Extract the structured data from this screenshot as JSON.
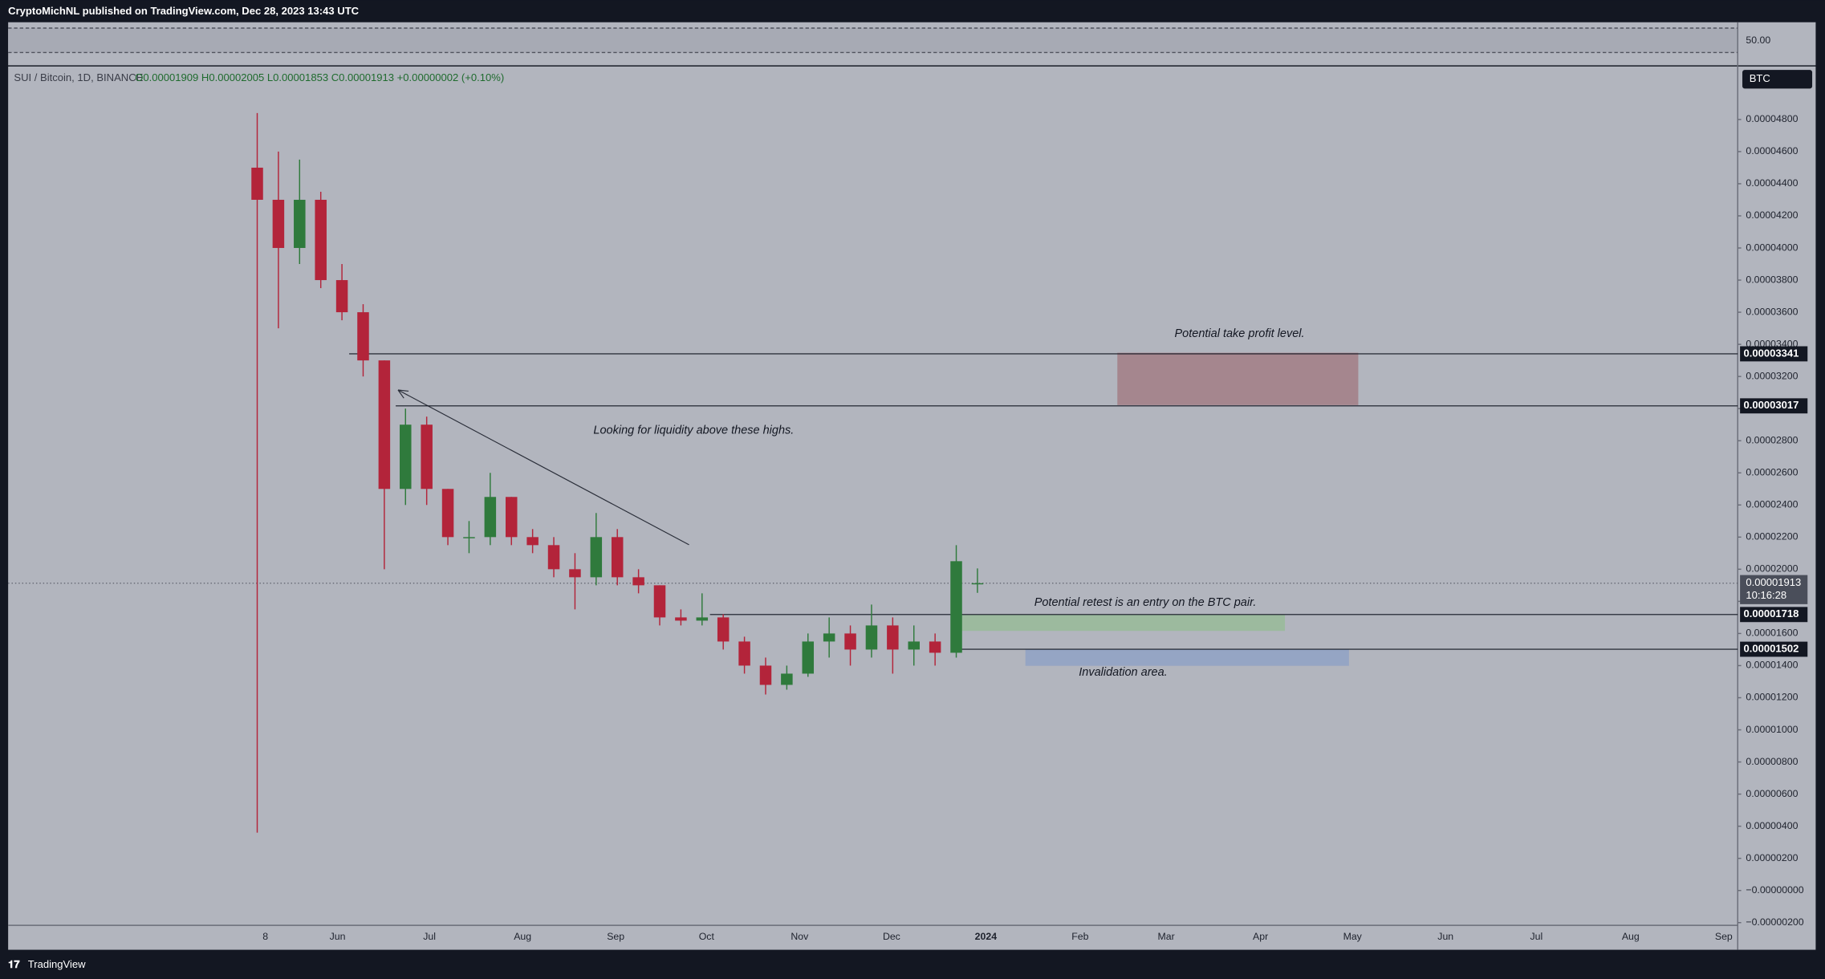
{
  "chart_data": {
    "type": "candlestick",
    "title": "CryptoMichNL published on TradingView.com, Dec 28, 2023 13:43 UTC",
    "subtitle": "SUI / Bitcoin, 1D, BINANCE",
    "ohlc_legend": "O0.00001909 H0.00002005 L0.00001853 C0.00001913 +0.00000002 (+0.10%)",
    "currency": "BTC",
    "rsi_label": "50.00",
    "footer": "TradingView",
    "categories": [
      null,
      null,
      null,
      null,
      null,
      null,
      null,
      null,
      null,
      null,
      null,
      null,
      null,
      null,
      null,
      null,
      null,
      null,
      null,
      null,
      null,
      null,
      null,
      null,
      null,
      null,
      null,
      null,
      null,
      null,
      null,
      null,
      null,
      null,
      null
    ],
    "open": [
      4.5e-05,
      4.3e-05,
      4e-05,
      4.3e-05,
      3.8e-05,
      3.6e-05,
      3.3e-05,
      2.5e-05,
      2.9e-05,
      2.5e-05,
      2.2e-05,
      2.2e-05,
      2.45e-05,
      2.2e-05,
      2.15e-05,
      2e-05,
      1.95e-05,
      2.2e-05,
      1.95e-05,
      1.9e-05,
      1.7e-05,
      1.68e-05,
      1.7e-05,
      1.55e-05,
      1.4e-05,
      1.28e-05,
      1.35e-05,
      1.55e-05,
      1.6e-05,
      1.5e-05,
      1.65e-05,
      1.5e-05,
      1.55e-05,
      1.48e-05,
      1.909e-05
    ],
    "high": [
      4.84e-05,
      4.6e-05,
      4.55e-05,
      4.35e-05,
      3.9e-05,
      3.65e-05,
      3.3e-05,
      3e-05,
      2.95e-05,
      2.5e-05,
      2.3e-05,
      2.6e-05,
      2.45e-05,
      2.25e-05,
      2.2e-05,
      2.1e-05,
      2.35e-05,
      2.25e-05,
      2e-05,
      1.9e-05,
      1.75e-05,
      1.85e-05,
      1.72e-05,
      1.58e-05,
      1.45e-05,
      1.4e-05,
      1.6e-05,
      1.7e-05,
      1.65e-05,
      1.78e-05,
      1.7e-05,
      1.65e-05,
      1.6e-05,
      2.15e-05,
      2.005e-05
    ],
    "low": [
      3.6e-06,
      3.5e-05,
      3.9e-05,
      3.75e-05,
      3.55e-05,
      3.2e-05,
      2e-05,
      2.4e-05,
      2.4e-05,
      2.15e-05,
      2.1e-05,
      2.15e-05,
      2.15e-05,
      2.1e-05,
      1.95e-05,
      1.75e-05,
      1.9e-05,
      1.9e-05,
      1.85e-05,
      1.65e-05,
      1.65e-05,
      1.65e-05,
      1.5e-05,
      1.35e-05,
      1.22e-05,
      1.25e-05,
      1.33e-05,
      1.45e-05,
      1.4e-05,
      1.45e-05,
      1.35e-05,
      1.4e-05,
      1.4e-05,
      1.45e-05,
      1.853e-05
    ],
    "close": [
      4.3e-05,
      4e-05,
      4.3e-05,
      3.8e-05,
      3.6e-05,
      3.3e-05,
      2.5e-05,
      2.9e-05,
      2.5e-05,
      2.2e-05,
      2.2e-05,
      2.45e-05,
      2.2e-05,
      2.15e-05,
      2e-05,
      1.95e-05,
      2.2e-05,
      1.95e-05,
      1.9e-05,
      1.7e-05,
      1.68e-05,
      1.7e-05,
      1.55e-05,
      1.4e-05,
      1.28e-05,
      1.35e-05,
      1.55e-05,
      1.6e-05,
      1.5e-05,
      1.65e-05,
      1.5e-05,
      1.55e-05,
      1.48e-05,
      2.05e-05,
      1.913e-05
    ],
    "up_color": "#2f7a3c",
    "down_color": "#b3243a",
    "ylim": [
      -2.17e-06,
      5.13e-05
    ],
    "yticks": [
      {
        "value": 4.8e-05,
        "label": "0.00004800"
      },
      {
        "value": 4.6e-05,
        "label": "0.00004600"
      },
      {
        "value": 4.4e-05,
        "label": "0.00004400"
      },
      {
        "value": 4.2e-05,
        "label": "0.00004200"
      },
      {
        "value": 4e-05,
        "label": "0.00004000"
      },
      {
        "value": 3.8e-05,
        "label": "0.00003800"
      },
      {
        "value": 3.6e-05,
        "label": "0.00003600"
      },
      {
        "value": 3.4e-05,
        "label": "0.00003400"
      },
      {
        "value": 3.2e-05,
        "label": "0.00003200"
      },
      {
        "value": 3e-05,
        "label": "0.00003000"
      },
      {
        "value": 2.8e-05,
        "label": "0.00002800"
      },
      {
        "value": 2.6e-05,
        "label": "0.00002600"
      },
      {
        "value": 2.4e-05,
        "label": "0.00002400"
      },
      {
        "value": 2.2e-05,
        "label": "0.00002200"
      },
      {
        "value": 2e-05,
        "label": "0.00002000"
      },
      {
        "value": 1.8e-05,
        "label": "0.00001800"
      },
      {
        "value": 1.6e-05,
        "label": "0.00001600"
      },
      {
        "value": 1.4e-05,
        "label": "0.00001400"
      },
      {
        "value": 1.2e-05,
        "label": "0.00001200"
      },
      {
        "value": 1e-05,
        "label": "0.00001000"
      },
      {
        "value": 8e-06,
        "label": "0.00000800"
      },
      {
        "value": 6e-06,
        "label": "0.00000600"
      },
      {
        "value": 4e-06,
        "label": "0.00000400"
      },
      {
        "value": 2e-06,
        "label": "0.00000200"
      },
      {
        "value": 0,
        "label": "−0.00000000"
      },
      {
        "value": -2e-06,
        "label": "−0.00000200"
      }
    ],
    "xtick_labels": [
      "8",
      "Jun",
      "Jul",
      "Aug",
      "Sep",
      "Oct",
      "Nov",
      "Dec",
      "2024",
      "Feb",
      "Mar",
      "Apr",
      "May",
      "Jun",
      "Jul",
      "Aug",
      "Sep"
    ],
    "levels": [
      {
        "value": 3.341e-05,
        "label": "0.00003341"
      },
      {
        "value": 3.017e-05,
        "label": "0.00003017"
      },
      {
        "value": 1.718e-05,
        "label": "0.00001718"
      },
      {
        "value": 1.502e-05,
        "label": "0.00001502"
      }
    ],
    "last_price": {
      "value": 1.913e-05,
      "label": "0.00001913"
    },
    "countdown": "10:16:28",
    "annotations": [
      "Potential take profit level.",
      "Looking for liquidity above these highs.",
      "Potential retest is an entry on the BTC pair.",
      "Invalidation area."
    ]
  }
}
